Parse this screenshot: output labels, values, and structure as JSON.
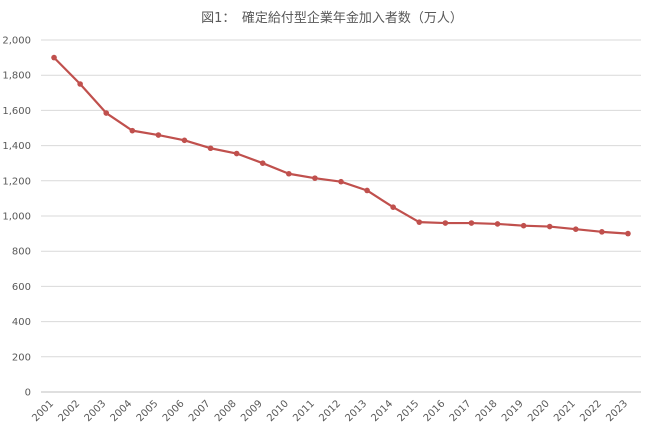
{
  "chart_data": {
    "type": "line",
    "title": "図1：　確定給付型企業年金加入者数（万人）",
    "xlabel": "",
    "ylabel": "",
    "categories": [
      "2001",
      "2002",
      "2003",
      "2004",
      "2005",
      "2006",
      "2007",
      "2008",
      "2009",
      "2010",
      "2011",
      "2012",
      "2013",
      "2014",
      "2015",
      "2016",
      "2017",
      "2018",
      "2019",
      "2020",
      "2021",
      "2022",
      "2023"
    ],
    "series": [
      {
        "values": [
          1900,
          1750,
          1585,
          1485,
          1460,
          1430,
          1385,
          1355,
          1300,
          1240,
          1215,
          1195,
          1145,
          1050,
          965,
          960,
          960,
          955,
          945,
          940,
          925,
          910,
          900
        ]
      }
    ],
    "ylim": [
      0,
      2000
    ],
    "yticks": [
      "0",
      "200",
      "400",
      "600",
      "800",
      "1,000",
      "1,200",
      "1,400",
      "1,600",
      "1,800",
      "2,000"
    ],
    "ytick_values": [
      0,
      200,
      400,
      600,
      800,
      1000,
      1200,
      1400,
      1600,
      1800,
      2000
    ],
    "grid": true,
    "legend": "none",
    "colors": {
      "series": "#c0504d",
      "grid": "#d9d9d9",
      "text": "#595959"
    }
  }
}
